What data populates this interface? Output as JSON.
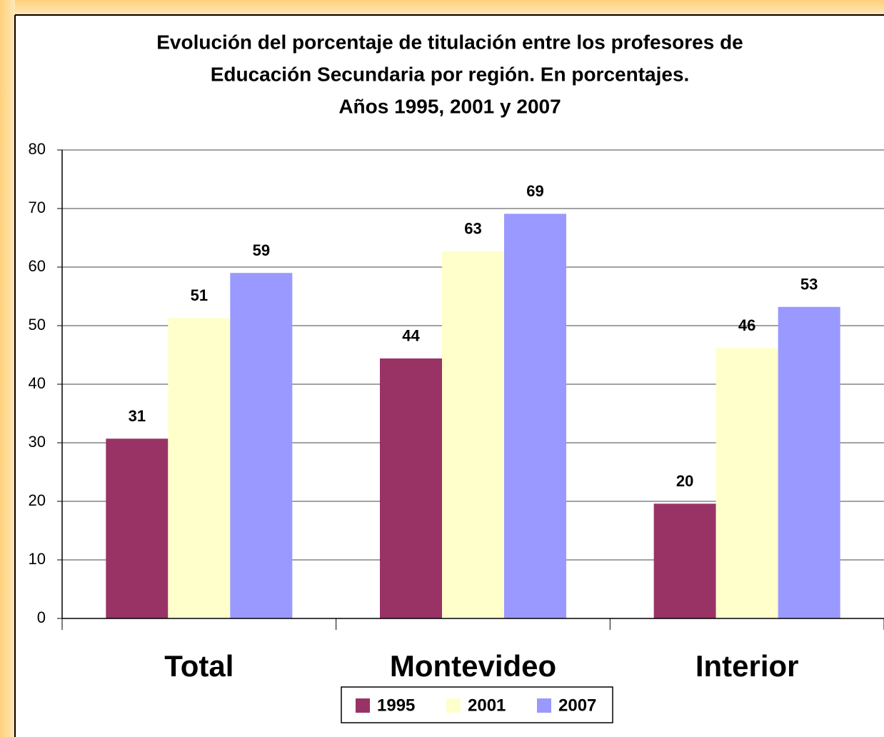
{
  "chart_data": {
    "type": "bar",
    "title": [
      "Evolución del porcentaje de titulación entre los profesores de",
      "Educación Secundaria por región. En porcentajes.",
      "Años 1995, 2001 y 2007"
    ],
    "categories": [
      "Total",
      "Montevideo",
      "Interior"
    ],
    "series": [
      {
        "name": "1995",
        "color": "#993366",
        "values": [
          30.7,
          44.4,
          19.6
        ],
        "value_labels": [
          "31",
          "44",
          "20"
        ]
      },
      {
        "name": "2001",
        "color": "#FFFFCC",
        "values": [
          51.3,
          62.7,
          46.2
        ],
        "value_labels": [
          "51",
          "63",
          "46"
        ]
      },
      {
        "name": "2007",
        "color": "#9999FF",
        "values": [
          59.0,
          69.1,
          53.2
        ],
        "value_labels": [
          "59",
          "69",
          "53"
        ]
      }
    ],
    "ylim": [
      0,
      80
    ],
    "yticks": [
      0,
      10,
      20,
      30,
      40,
      50,
      60,
      70,
      80
    ],
    "grid": true,
    "legend": "bottom"
  }
}
